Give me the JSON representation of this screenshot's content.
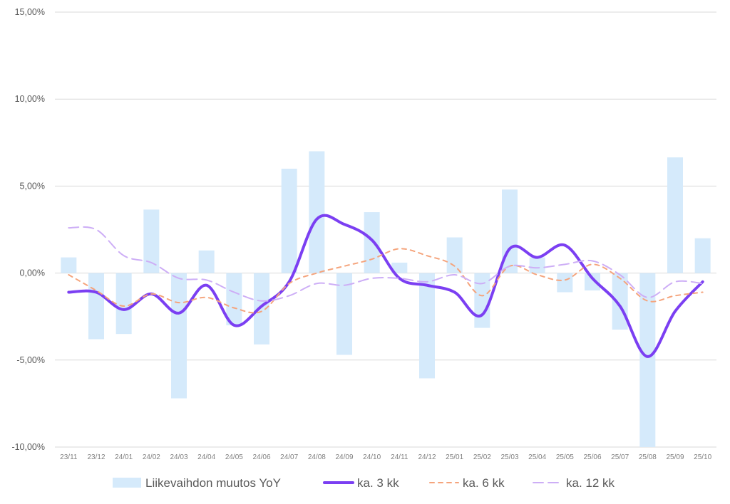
{
  "chart_data": {
    "type": "bar",
    "title": "",
    "xlabel": "",
    "ylabel": "",
    "ylim": [
      -10,
      15
    ],
    "yticks": [
      "-10,00%",
      "-5,00%",
      "0,00%",
      "5,00%",
      "10,00%",
      "15,00%"
    ],
    "ytick_values": [
      -10,
      -5,
      0,
      5,
      10,
      15
    ],
    "grid": true,
    "legend_position": "bottom",
    "categories": [
      "23/11",
      "23/12",
      "24/01",
      "24/02",
      "24/03",
      "24/04",
      "24/05",
      "24/06",
      "24/07",
      "24/08",
      "24/09",
      "24/10",
      "24/11",
      "24/12",
      "25/01",
      "25/02",
      "25/03",
      "25/04",
      "25/05",
      "25/06",
      "25/07",
      "25/08",
      "25/09",
      "25/10"
    ],
    "series": [
      {
        "name": "Liikevaihdon muutos YoY",
        "kind": "bar",
        "color": "#d5eafb",
        "values": [
          0.9,
          -3.8,
          -3.5,
          3.65,
          -7.2,
          1.3,
          -3.0,
          -4.1,
          6.0,
          7.0,
          -4.7,
          3.5,
          0.6,
          -6.05,
          2.05,
          -3.15,
          4.8,
          0.9,
          -1.1,
          -1.0,
          -3.25,
          -10.5,
          6.65,
          2.0
        ]
      },
      {
        "name": "ka. 3 kk",
        "kind": "line",
        "style": "solid",
        "color": "#7b3ff2",
        "values": [
          -1.1,
          -1.1,
          -2.1,
          -1.2,
          -2.3,
          -0.7,
          -3.0,
          -1.9,
          -0.5,
          3.1,
          2.8,
          1.9,
          -0.3,
          -0.7,
          -1.1,
          -2.4,
          1.4,
          0.9,
          1.6,
          -0.3,
          -1.9,
          -4.8,
          -2.2,
          -0.5
        ]
      },
      {
        "name": "ka. 6 kk",
        "kind": "line",
        "style": "dashed",
        "color": "#f5a47c",
        "values": [
          -0.1,
          -1.0,
          -1.9,
          -1.2,
          -1.7,
          -1.4,
          -2.0,
          -2.2,
          -0.6,
          0.0,
          0.4,
          0.8,
          1.4,
          1.0,
          0.4,
          -1.3,
          0.4,
          -0.1,
          -0.4,
          0.5,
          -0.3,
          -1.6,
          -1.3,
          -1.1
        ]
      },
      {
        "name": "ka. 12 kk",
        "kind": "line",
        "style": "long-dashed",
        "color": "#cdaef6",
        "values": [
          2.6,
          2.5,
          1.0,
          0.6,
          -0.3,
          -0.4,
          -1.1,
          -1.6,
          -1.3,
          -0.6,
          -0.7,
          -0.3,
          -0.3,
          -0.5,
          -0.1,
          -0.6,
          0.4,
          0.3,
          0.5,
          0.7,
          -0.1,
          -1.4,
          -0.5,
          -0.6
        ]
      }
    ]
  }
}
